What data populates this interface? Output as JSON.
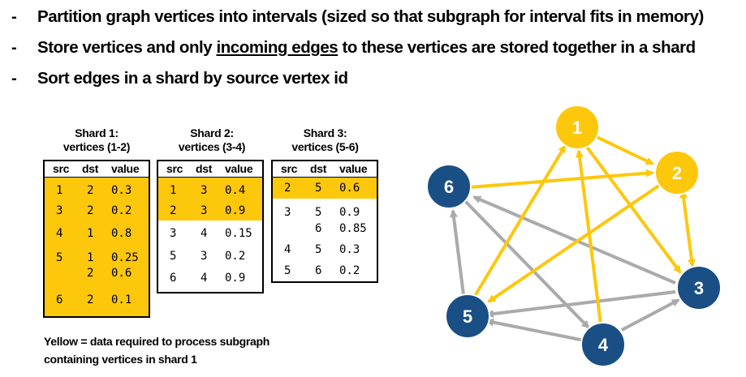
{
  "bullets": [
    {
      "dash": "-",
      "text": "Partition graph vertices into intervals (sized so that subgraph for interval fits in memory)"
    },
    {
      "dash": "-",
      "pre": "Store vertices and only ",
      "underline": "incoming edges",
      "post": " to these vertices are stored together in a shard"
    },
    {
      "dash": "-",
      "text": "Sort edges in a shard by source vertex id"
    }
  ],
  "headers": {
    "src": "src",
    "dst": "dst",
    "value": "value"
  },
  "shards": [
    {
      "title": "Shard 1:",
      "subtitle": "vertices (1-2)",
      "cells": {
        "r1": {
          "src": "1",
          "dst": "2",
          "value": "0.3"
        },
        "r2": {
          "src": "3",
          "dst": "2",
          "value": "0.2"
        },
        "r3": {
          "src": "4",
          "dst": "1",
          "value": "0.8"
        },
        "r4": {
          "src": "5",
          "dst": "1",
          "value": "0.25"
        },
        "r5": {
          "dst": "2",
          "value": "0.6"
        },
        "r6": {
          "src": "6",
          "dst": "2",
          "value": "0.1"
        }
      }
    },
    {
      "title": "Shard 2:",
      "subtitle": "vertices (3-4)",
      "cells": {
        "r1": {
          "src": "1",
          "dst": "3",
          "value": "0.4"
        },
        "r2": {
          "src": "2",
          "dst": "3",
          "value": "0.9"
        },
        "r3": {
          "src": "3",
          "dst": "4",
          "value": "0.15"
        },
        "r4": {
          "src": "5",
          "dst": "3",
          "value": "0.2"
        },
        "r5": {
          "src": "6",
          "dst": "4",
          "value": "0.9"
        }
      }
    },
    {
      "title": "Shard 3:",
      "subtitle": "vertices (5-6)",
      "cells": {
        "r1": {
          "src": "2",
          "dst": "5",
          "value": "0.6"
        },
        "r2": {
          "src": "3",
          "dst": "5",
          "value": "0.9"
        },
        "r3": {
          "dst": "6",
          "value": "0.85"
        },
        "r4": {
          "src": "4",
          "dst": "5",
          "value": "0.3"
        },
        "r5": {
          "src": "5",
          "dst": "6",
          "value": "0.2"
        }
      }
    }
  ],
  "caption": {
    "line1": "Yellow = data required to process subgraph",
    "line2": "containing vertices in shard 1"
  },
  "graph": {
    "nodes": {
      "n1": "1",
      "n2": "2",
      "n3": "3",
      "n4": "4",
      "n5": "5",
      "n6": "6"
    },
    "colors": {
      "yellow": "#fdc70c",
      "gray": "#aaaaaa",
      "blue": "#1a4f85",
      "highlight": "#fdc70c"
    }
  }
}
